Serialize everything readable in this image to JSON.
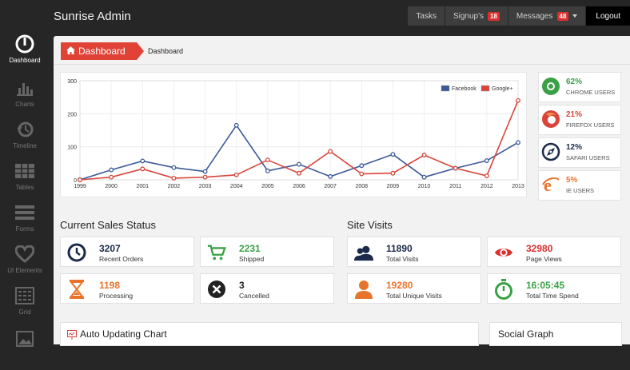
{
  "app": {
    "title": "Sunrise Admin"
  },
  "topnav": [
    {
      "label": "Tasks",
      "badge": ""
    },
    {
      "label": "Signup's",
      "badge": "18"
    },
    {
      "label": "Messages",
      "badge": "48"
    },
    {
      "label": "Logout",
      "badge": ""
    }
  ],
  "sidebar": {
    "items": [
      {
        "label": "Dashboard",
        "icon": "dashboard-icon"
      },
      {
        "label": "Charts",
        "icon": "bar-chart-icon"
      },
      {
        "label": "Timeline",
        "icon": "history-icon"
      },
      {
        "label": "Tables",
        "icon": "table-icon"
      },
      {
        "label": "Forms",
        "icon": "forms-icon"
      },
      {
        "label": "UI Elements",
        "icon": "heart-icon"
      },
      {
        "label": "Grid",
        "icon": "grid-icon"
      }
    ]
  },
  "breadcrumb": {
    "tab": "Dashboard",
    "current": "Dashboard"
  },
  "chart_data": {
    "type": "line",
    "x": [
      "1999",
      "2000",
      "2001",
      "2002",
      "2003",
      "2004",
      "2005",
      "2006",
      "2007",
      "2008",
      "2009",
      "2010",
      "2011",
      "2012",
      "2013"
    ],
    "series": [
      {
        "name": "Facebook",
        "color": "#3b5998",
        "values": [
          0,
          30,
          57,
          37,
          25,
          165,
          27,
          47,
          10,
          43,
          77,
          8,
          35,
          58,
          113
        ]
      },
      {
        "name": "Google+",
        "color": "#d9443a",
        "values": [
          0,
          8,
          33,
          5,
          8,
          15,
          60,
          20,
          86,
          18,
          20,
          75,
          35,
          12,
          240
        ]
      }
    ],
    "yticks": [
      0,
      100,
      200,
      300
    ],
    "ylim": [
      0,
      300
    ],
    "legend": "top-right",
    "grid": true
  },
  "browser_stats": [
    {
      "pct": "62%",
      "label": "CHROME USERS",
      "color": "#3aa146",
      "icon": "chrome-icon"
    },
    {
      "pct": "21%",
      "label": "FIREFOX USERS",
      "color": "#d9443a",
      "icon": "firefox-icon"
    },
    {
      "pct": "12%",
      "label": "SAFARI USERS",
      "color": "#1b2a4a",
      "icon": "safari-icon"
    },
    {
      "pct": "5%",
      "label": "IE USERS",
      "color": "#e8742c",
      "icon": "ie-icon"
    }
  ],
  "sales": {
    "title": "Current Sales Status",
    "cards": [
      {
        "value": "3207",
        "label": "Recent Orders",
        "color": "#1b2a4a",
        "icon": "clock-icon"
      },
      {
        "value": "2231",
        "label": "Shipped",
        "color": "#3aa146",
        "icon": "cart-icon"
      },
      {
        "value": "1198",
        "label": "Processing",
        "color": "#e8742c",
        "icon": "hourglass-icon"
      },
      {
        "value": "3",
        "label": "Cancelled",
        "color": "#222222",
        "icon": "cancel-icon"
      }
    ]
  },
  "visits": {
    "title": "Site Visits",
    "cards": [
      {
        "value": "11890",
        "label": "Total Visits",
        "color": "#1b2a4a",
        "icon": "users-icon"
      },
      {
        "value": "32980",
        "label": "Page Views",
        "color": "#d9302f",
        "icon": "eye-icon"
      },
      {
        "value": "19280",
        "label": "Total Unique Visits",
        "color": "#e8742c",
        "icon": "user-icon"
      },
      {
        "value": "16:05:45",
        "label": "Total Time Spend",
        "color": "#3aa146",
        "icon": "stopwatch-icon"
      }
    ]
  },
  "bottom": {
    "auto_chart": "Auto Updating Chart",
    "social": "Social Graph"
  }
}
